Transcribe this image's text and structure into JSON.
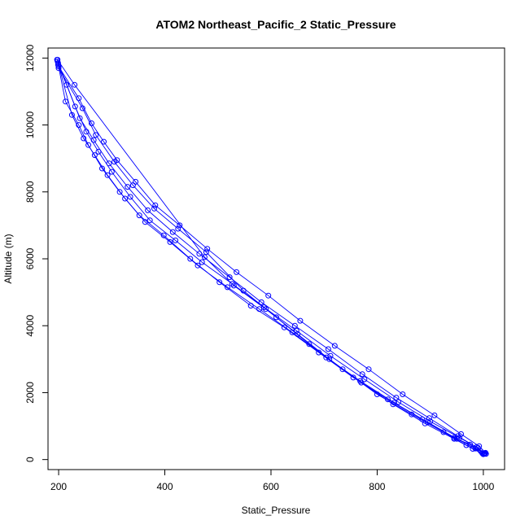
{
  "chart_data": {
    "type": "scatter",
    "title": "ATOM2 Northeast_Pacific_2 Static_Pressure",
    "xlabel": "Static_Pressure",
    "ylabel": "Altitude (m)",
    "xlim": [
      180,
      1040
    ],
    "ylim": [
      -300,
      12300
    ],
    "x_ticks": [
      "200",
      "400",
      "600",
      "800",
      "1000"
    ],
    "y_ticks": [
      "0",
      "2000",
      "4000",
      "6000",
      "8000",
      "10000",
      "12000"
    ],
    "grid": false,
    "legend": "none",
    "style": "points connected by thin lines, open circle markers",
    "color": "#0000ff",
    "series": [
      {
        "x": [
          198,
          213,
          238,
          256,
          282,
          315,
          352,
          398,
          448,
          503,
          562,
          625,
          690,
          755,
          820,
          885,
          945,
          975,
          995,
          1005
        ],
        "y": [
          11900,
          10700,
          10000,
          9400,
          8700,
          8000,
          7300,
          6700,
          6000,
          5300,
          4600,
          3950,
          3200,
          2450,
          1800,
          1200,
          650,
          450,
          250,
          170
        ]
      },
      {
        "x": [
          199,
          225,
          247,
          268,
          292,
          325,
          363,
          410,
          462,
          518,
          578,
          640,
          704,
          768,
          832,
          895,
          950,
          985,
          1003
        ],
        "y": [
          11850,
          10300,
          9600,
          9100,
          8500,
          7800,
          7100,
          6500,
          5800,
          5150,
          4500,
          3800,
          3050,
          2350,
          1700,
          1120,
          620,
          330,
          180
        ]
      },
      {
        "x": [
          197,
          231,
          252,
          275,
          300,
          335,
          372,
          420,
          470,
          527,
          587,
          648,
          712,
          776,
          840,
          900,
          955,
          990,
          1002
        ],
        "y": [
          11950,
          10550,
          9800,
          9200,
          8600,
          7850,
          7150,
          6550,
          5900,
          5250,
          4550,
          3850,
          3100,
          2400,
          1720,
          1140,
          650,
          350,
          190
        ]
      },
      {
        "x": [
          200,
          238,
          262,
          285,
          310,
          345,
          382,
          428,
          480,
          535,
          595,
          655,
          720,
          784,
          848,
          908,
          958,
          992,
          1004
        ],
        "y": [
          11750,
          10800,
          10050,
          9500,
          8950,
          8300,
          7600,
          7000,
          6300,
          5600,
          4900,
          4150,
          3400,
          2700,
          1950,
          1320,
          760,
          400,
          200
        ]
      },
      {
        "x": [
          199,
          215,
          240,
          266,
          295,
          330,
          368,
          415,
          465,
          522,
          582,
          645,
          708,
          772,
          836,
          898,
          952,
          987,
          1001
        ],
        "y": [
          11800,
          11200,
          10200,
          9550,
          8850,
          8150,
          7450,
          6800,
          6150,
          5450,
          4700,
          4000,
          3300,
          2550,
          1850,
          1240,
          700,
          370,
          175
        ]
      },
      {
        "x": [
          198,
          230,
          475,
          530,
          590,
          650,
          710,
          770,
          830,
          890,
          945,
          980,
          1000
        ],
        "y": [
          11950,
          11200,
          6050,
          5200,
          4500,
          3750,
          3000,
          2300,
          1650,
          1080,
          620,
          320,
          160
        ]
      },
      {
        "x": [
          200,
          245,
          270,
          305,
          340,
          380,
          425,
          478,
          548,
          610,
          672,
          735,
          800,
          865,
          925,
          968,
          998
        ],
        "y": [
          11700,
          10500,
          9700,
          8900,
          8200,
          7500,
          6900,
          6200,
          5050,
          4250,
          3450,
          2700,
          1950,
          1350,
          820,
          430,
          190
        ]
      }
    ]
  }
}
